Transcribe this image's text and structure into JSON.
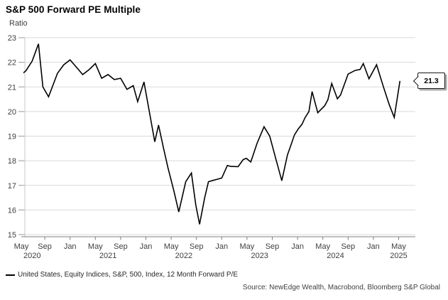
{
  "chart": {
    "title": "S&P 500 Forward PE Multiple",
    "y_axis_unit_label": "Ratio",
    "callout": {
      "value": "21.3"
    },
    "legend": {
      "series_label": "United States, Equity Indices, S&P, 500, Index, 12 Month Forward P/E"
    },
    "source": "Source: NewEdge Wealth, Macrobond, Bloomberg S&P Global",
    "colors": {
      "line": "#000000",
      "grid": "#d9d9d9",
      "axis": "#7f7f7f",
      "left_axis": "#c8c8c8",
      "tick_dash": "#9a9a9a",
      "label_text": "#404040",
      "callout_border": "#1a1a1a",
      "callout_shadow": "#adadad"
    }
  },
  "chart_data": {
    "type": "line",
    "title": "S&P 500 Forward PE Multiple",
    "xlabel": "",
    "ylabel": "Ratio",
    "ylim": [
      15,
      23
    ],
    "y_ticks": [
      23,
      22,
      21,
      20,
      19,
      18,
      17,
      16,
      15
    ],
    "grid": true,
    "legend_position": "bottom-left",
    "x_unit": "months since 2020-05",
    "x_range_months": [
      0,
      61.5
    ],
    "x_month_ticks": [
      {
        "label": "May",
        "month": 0
      },
      {
        "label": "Sep",
        "month": 4
      },
      {
        "label": "Jan",
        "month": 8
      },
      {
        "label": "May",
        "month": 12
      },
      {
        "label": "Sep",
        "month": 16
      },
      {
        "label": "Jan",
        "month": 20
      },
      {
        "label": "May",
        "month": 24
      },
      {
        "label": "Sep",
        "month": 28
      },
      {
        "label": "Jan",
        "month": 32
      },
      {
        "label": "May",
        "month": 36
      },
      {
        "label": "Sep",
        "month": 40
      },
      {
        "label": "Jan",
        "month": 44
      },
      {
        "label": "May",
        "month": 48
      },
      {
        "label": "Sep",
        "month": 52
      },
      {
        "label": "Jan",
        "month": 56
      },
      {
        "label": "May",
        "month": 60
      }
    ],
    "x_year_labels": [
      {
        "label": "2020",
        "month": 2
      },
      {
        "label": "2021",
        "month": 14
      },
      {
        "label": "2022",
        "month": 26
      },
      {
        "label": "2023",
        "month": 38
      },
      {
        "label": "2024",
        "month": 50
      },
      {
        "label": "2025",
        "month": 60
      }
    ],
    "series": [
      {
        "name": "United States, Equity Indices, S&P, 500, Index, 12 Month Forward P/E",
        "latest_value": 21.3,
        "points": [
          [
            0,
            21.45
          ],
          [
            1,
            21.65
          ],
          [
            2,
            22.05
          ],
          [
            3,
            22.75
          ],
          [
            3.7,
            21.0
          ],
          [
            4.6,
            20.6
          ],
          [
            6,
            21.55
          ],
          [
            7,
            21.9
          ],
          [
            8,
            22.1
          ],
          [
            9,
            21.8
          ],
          [
            10,
            21.5
          ],
          [
            11,
            21.7
          ],
          [
            12,
            21.95
          ],
          [
            13,
            21.35
          ],
          [
            14,
            21.5
          ],
          [
            15,
            21.3
          ],
          [
            16,
            21.35
          ],
          [
            17,
            20.9
          ],
          [
            18,
            21.05
          ],
          [
            18.7,
            20.4
          ],
          [
            19.7,
            21.2
          ],
          [
            21.4,
            18.77
          ],
          [
            22,
            19.45
          ],
          [
            22.8,
            18.5
          ],
          [
            23.5,
            17.7
          ],
          [
            24.4,
            16.8
          ],
          [
            25.2,
            15.92
          ],
          [
            26.3,
            17.15
          ],
          [
            27.2,
            17.5
          ],
          [
            27.9,
            16.2
          ],
          [
            28.5,
            15.42
          ],
          [
            29.3,
            16.5
          ],
          [
            29.9,
            17.15
          ],
          [
            30.6,
            17.2
          ],
          [
            31.3,
            17.25
          ],
          [
            32,
            17.3
          ],
          [
            32.9,
            17.81
          ],
          [
            33.4,
            17.77
          ],
          [
            34.6,
            17.76
          ],
          [
            35.4,
            18.05
          ],
          [
            35.9,
            18.1
          ],
          [
            36.6,
            17.95
          ],
          [
            37.6,
            18.71
          ],
          [
            38.7,
            19.38
          ],
          [
            39.6,
            19.0
          ],
          [
            40.5,
            18.14
          ],
          [
            41.5,
            17.19
          ],
          [
            42.4,
            18.24
          ],
          [
            43,
            18.67
          ],
          [
            43.5,
            19.05
          ],
          [
            44.1,
            19.29
          ],
          [
            44.7,
            19.48
          ],
          [
            45.2,
            19.76
          ],
          [
            45.8,
            20.0
          ],
          [
            46.3,
            20.81
          ],
          [
            47.2,
            19.95
          ],
          [
            48.3,
            20.24
          ],
          [
            48.8,
            20.48
          ],
          [
            49.4,
            21.14
          ],
          [
            50.3,
            20.52
          ],
          [
            50.8,
            20.67
          ],
          [
            52,
            21.52
          ],
          [
            53.1,
            21.67
          ],
          [
            53.9,
            21.71
          ],
          [
            54.4,
            21.95
          ],
          [
            55.3,
            21.33
          ],
          [
            56.5,
            21.9
          ],
          [
            57.6,
            21.0
          ],
          [
            58.5,
            20.29
          ],
          [
            59.3,
            19.76
          ],
          [
            60.2,
            21.24
          ]
        ]
      }
    ]
  }
}
